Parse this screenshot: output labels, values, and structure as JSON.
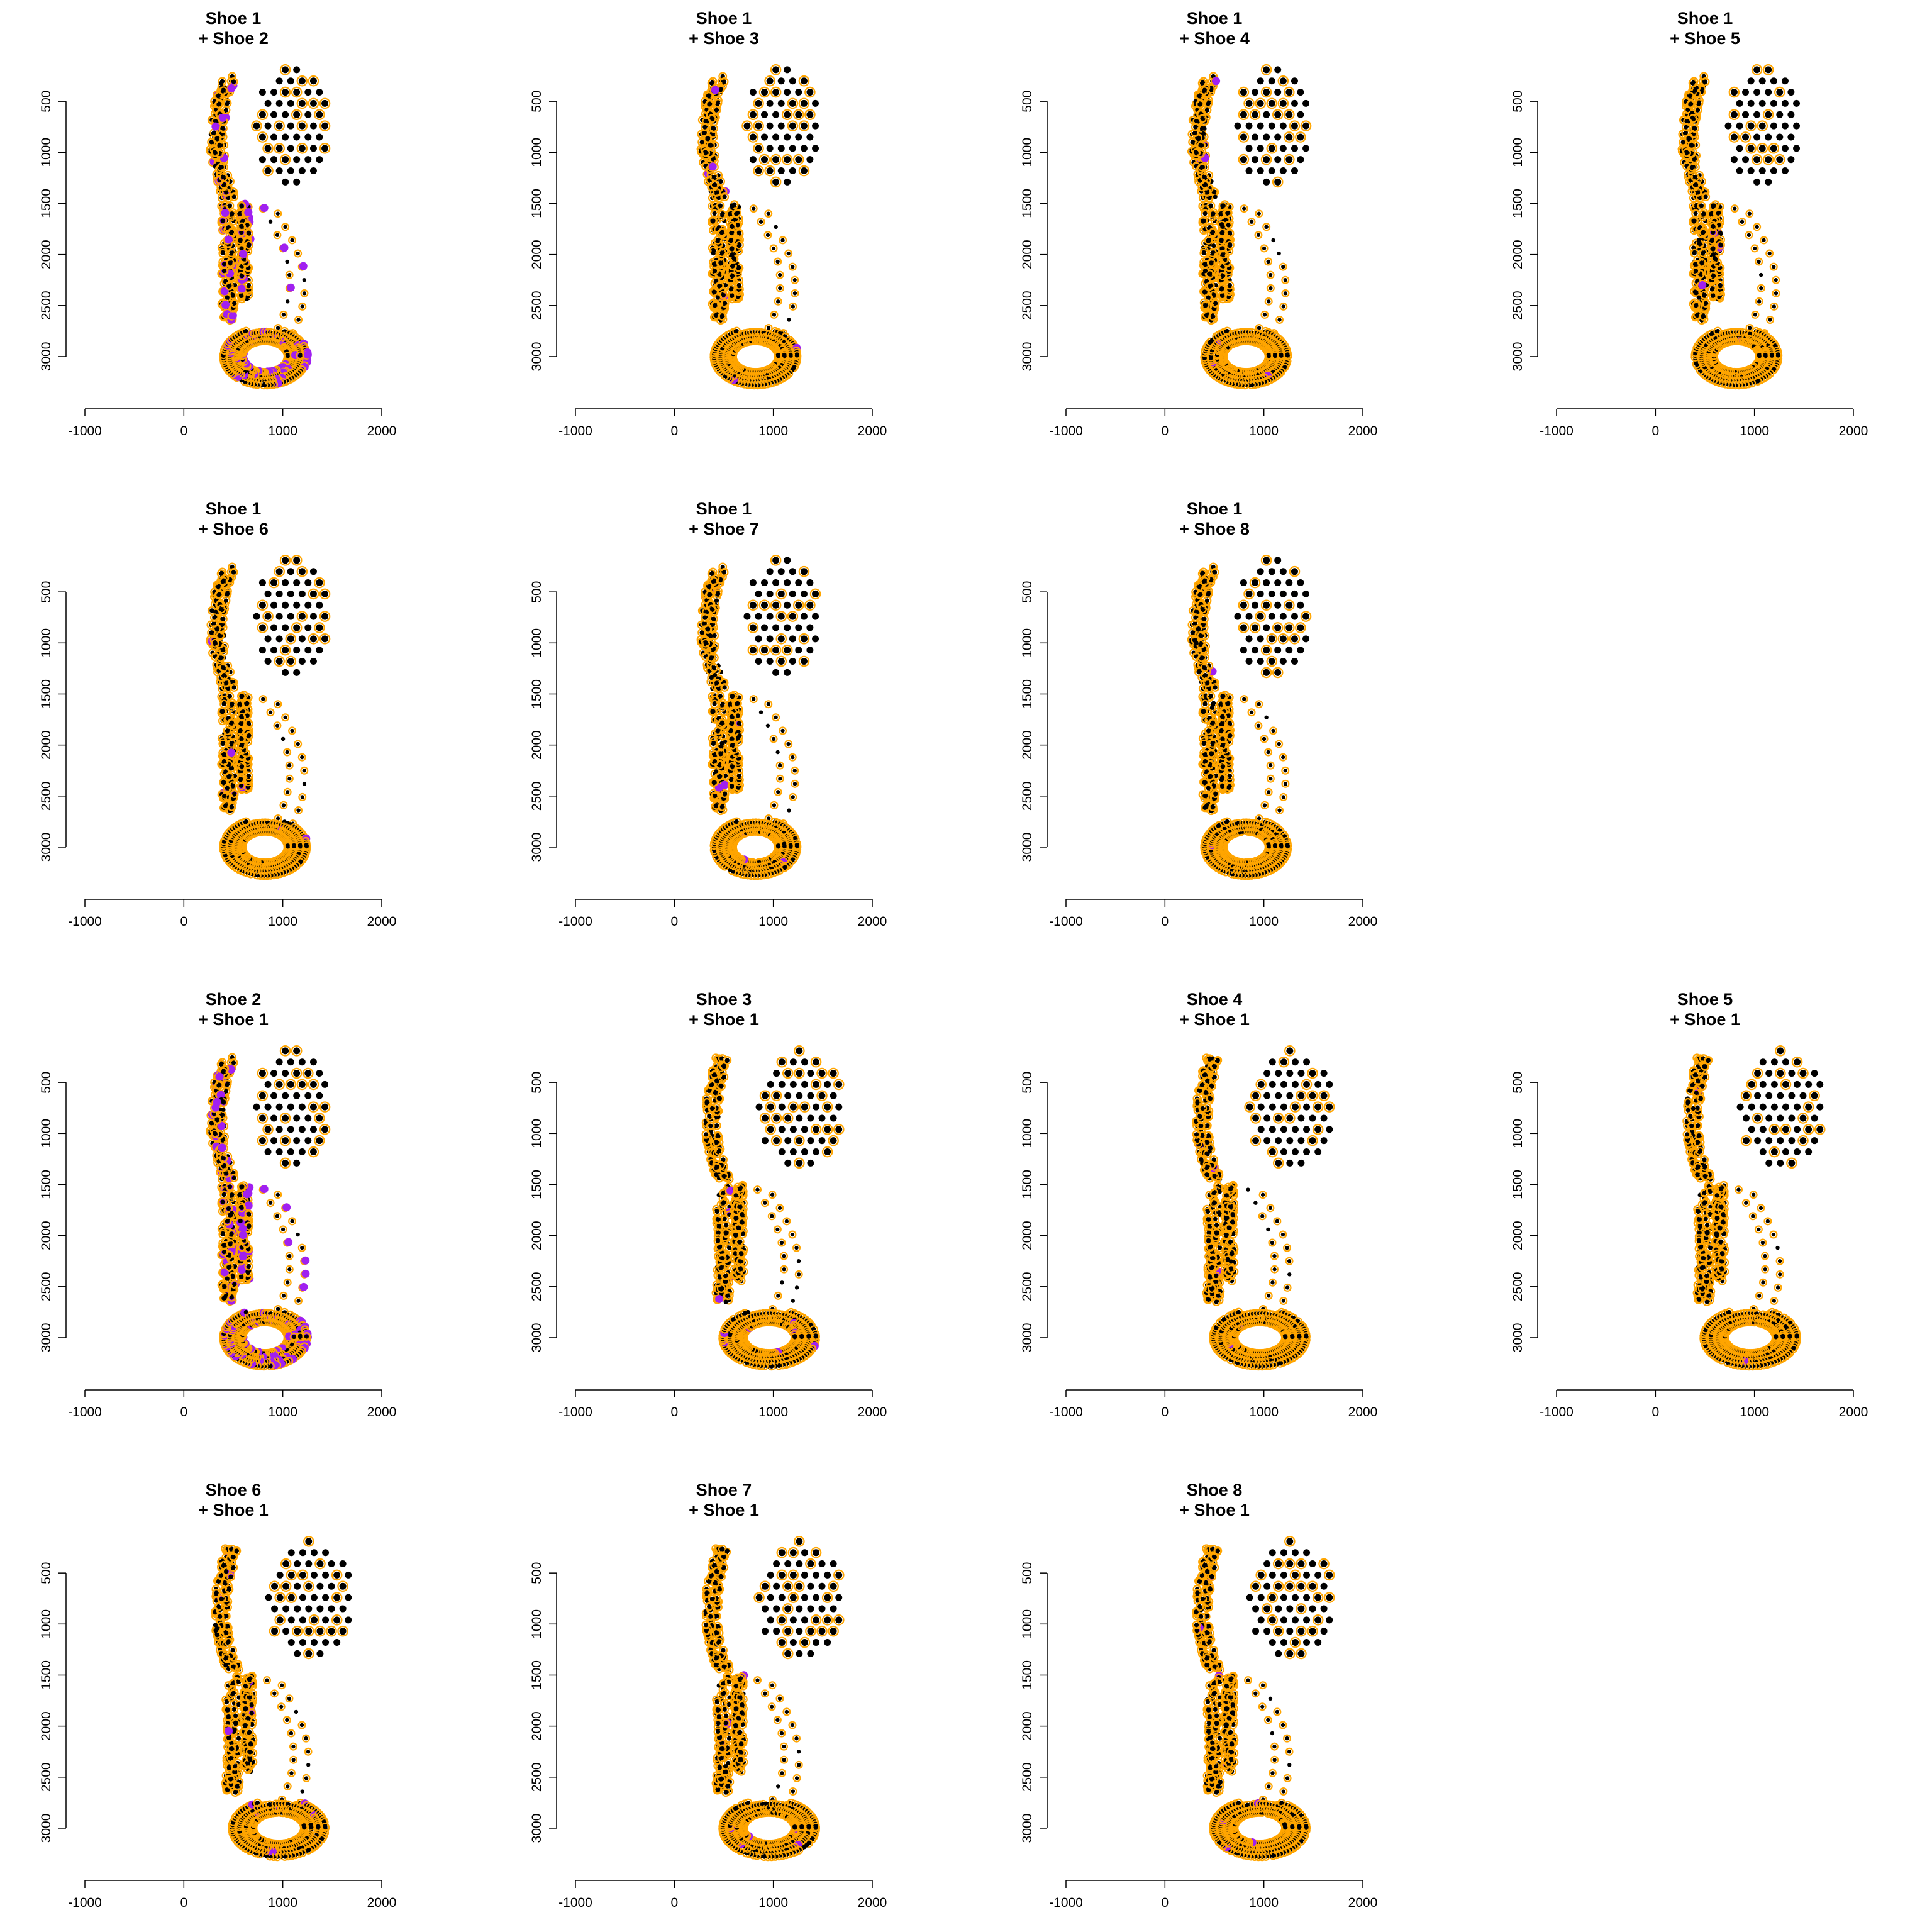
{
  "figure": {
    "background": "#ffffff",
    "colors": {
      "sole_points": "#000000",
      "matched_outline": "#ffa500",
      "highlight_fill": "#a020f0"
    },
    "axes": {
      "x_ticks": [
        -1000,
        0,
        1000,
        2000
      ],
      "y_ticks": [
        500,
        1000,
        1500,
        2000,
        2500,
        3000
      ],
      "xlim": [
        -1000,
        2000
      ],
      "ylim_reversed": [
        3450,
        0
      ]
    }
  },
  "chart_data": [
    {
      "type": "scatter",
      "title_line1": "Shoe 1",
      "title_line2": "+ Shoe 2",
      "variant": "base",
      "highlight_level": "high"
    },
    {
      "type": "scatter",
      "title_line1": "Shoe 1",
      "title_line2": "+ Shoe 3",
      "variant": "base",
      "highlight_level": "low"
    },
    {
      "type": "scatter",
      "title_line1": "Shoe 1",
      "title_line2": "+ Shoe 4",
      "variant": "base",
      "highlight_level": "low"
    },
    {
      "type": "scatter",
      "title_line1": "Shoe 1",
      "title_line2": "+ Shoe 5",
      "variant": "base",
      "highlight_level": "low"
    },
    {
      "type": "scatter",
      "title_line1": "Shoe 1",
      "title_line2": "+ Shoe 6",
      "variant": "base",
      "highlight_level": "low"
    },
    {
      "type": "scatter",
      "title_line1": "Shoe 1",
      "title_line2": "+ Shoe 7",
      "variant": "base",
      "highlight_level": "low"
    },
    {
      "type": "scatter",
      "title_line1": "Shoe 1",
      "title_line2": "+ Shoe 8",
      "variant": "base",
      "highlight_level": "low"
    },
    null,
    {
      "type": "scatter",
      "title_line1": "Shoe 2",
      "title_line2": "+ Shoe 1",
      "variant": "base",
      "highlight_level": "high"
    },
    {
      "type": "scatter",
      "title_line1": "Shoe 3",
      "title_line2": "+ Shoe 1",
      "variant": "alt",
      "highlight_level": "low"
    },
    {
      "type": "scatter",
      "title_line1": "Shoe 4",
      "title_line2": "+ Shoe 1",
      "variant": "alt",
      "highlight_level": "low"
    },
    {
      "type": "scatter",
      "title_line1": "Shoe 5",
      "title_line2": "+ Shoe 1",
      "variant": "alt",
      "highlight_level": "low"
    },
    {
      "type": "scatter",
      "title_line1": "Shoe 6",
      "title_line2": "+ Shoe 1",
      "variant": "alt",
      "highlight_level": "low"
    },
    {
      "type": "scatter",
      "title_line1": "Shoe 7",
      "title_line2": "+ Shoe 1",
      "variant": "alt",
      "highlight_level": "low"
    },
    {
      "type": "scatter",
      "title_line1": "Shoe 8",
      "title_line2": "+ Shoe 1",
      "variant": "alt",
      "highlight_level": "low"
    },
    null
  ]
}
